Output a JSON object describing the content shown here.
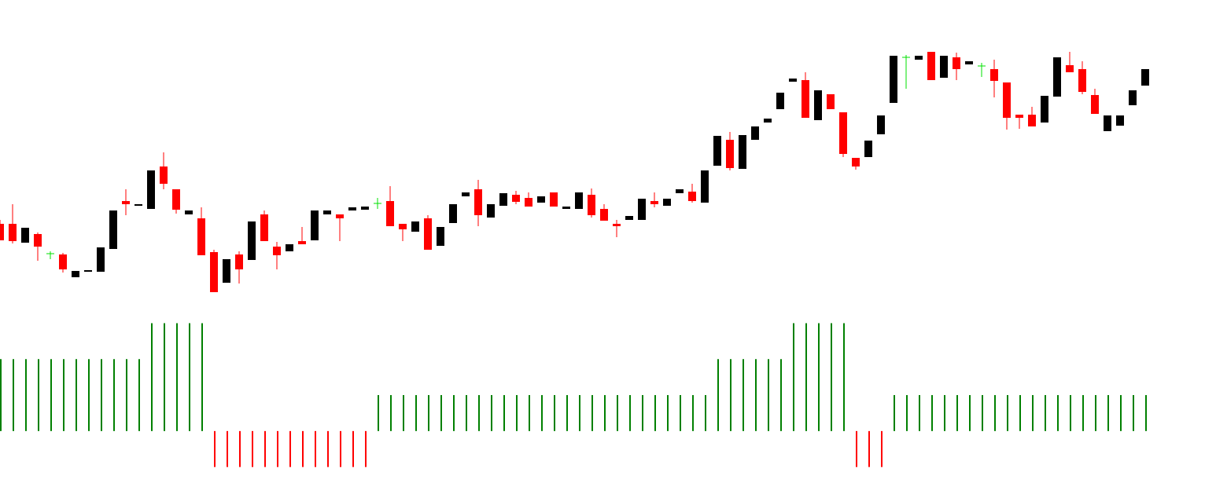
{
  "chart_data": [
    {
      "type": "candlestick",
      "ylim": [
        0,
        400
      ],
      "colors": {
        "up": "#000000",
        "down": "#ff0000",
        "doji": "#00e000"
      },
      "open": [
        115,
        115,
        91,
        102,
        77,
        76,
        47,
        54,
        54,
        83,
        144,
        138,
        134,
        188,
        159,
        127,
        122,
        79,
        40,
        76,
        69,
        127,
        86,
        80,
        93,
        94,
        127,
        127,
        132,
        133,
        141,
        144,
        115,
        105,
        122,
        87,
        116,
        150,
        159,
        123,
        138,
        152,
        148,
        142,
        155,
        134,
        134,
        152,
        134,
        115,
        120,
        120,
        144,
        138,
        154,
        156,
        142,
        189,
        222,
        185,
        222,
        244,
        261,
        296,
        298,
        247,
        280,
        257,
        199,
        200,
        229,
        269,
        327,
        324,
        334,
        301,
        327,
        318,
        316,
        312,
        295,
        254,
        254,
        244,
        277,
        317,
        312,
        279,
        233,
        240,
        266,
        291
      ],
      "high": [
        120,
        140,
        110,
        104,
        80,
        78,
        55,
        56,
        85,
        132,
        159,
        140,
        183,
        206,
        159,
        132,
        136,
        82,
        70,
        80,
        118,
        132,
        92,
        89,
        111,
        132,
        132,
        127,
        136,
        137,
        148,
        163,
        115,
        118,
        126,
        111,
        140,
        155,
        171,
        140,
        154,
        157,
        155,
        150,
        155,
        137,
        155,
        160,
        140,
        120,
        125,
        147,
        155,
        147,
        159,
        166,
        183,
        227,
        232,
        228,
        239,
        249,
        282,
        300,
        308,
        285,
        280,
        257,
        199,
        221,
        253,
        329,
        330,
        329,
        334,
        329,
        333,
        322,
        320,
        324,
        295,
        254,
        264,
        278,
        327,
        334,
        322,
        287,
        253,
        253,
        285,
        312
      ],
      "low": [
        94,
        90,
        91,
        68,
        70,
        53,
        47,
        54,
        54,
        83,
        126,
        138,
        134,
        159,
        128,
        127,
        75,
        28,
        40,
        39,
        69,
        93,
        57,
        80,
        89,
        94,
        127,
        93,
        132,
        133,
        134,
        112,
        93,
        105,
        82,
        87,
        116,
        150,
        112,
        123,
        138,
        140,
        137,
        142,
        137,
        134,
        134,
        123,
        119,
        98,
        120,
        120,
        136,
        138,
        154,
        142,
        142,
        189,
        183,
        185,
        222,
        244,
        261,
        296,
        250,
        247,
        261,
        200,
        184,
        200,
        229,
        269,
        287,
        324,
        298,
        301,
        298,
        318,
        302,
        276,
        235,
        236,
        239,
        244,
        277,
        308,
        280,
        255,
        233,
        240,
        266,
        291
      ],
      "close": [
        94,
        93,
        110,
        86,
        77,
        57,
        55,
        56,
        85,
        132,
        140,
        140,
        183,
        166,
        133,
        132,
        75,
        28,
        70,
        57,
        118,
        93,
        75,
        89,
        89,
        132,
        132,
        122,
        136,
        137,
        141,
        112,
        108,
        118,
        82,
        111,
        140,
        155,
        126,
        140,
        154,
        143,
        137,
        150,
        137,
        137,
        155,
        126,
        119,
        112,
        125,
        147,
        140,
        147,
        159,
        144,
        183,
        227,
        186,
        228,
        239,
        249,
        282,
        300,
        250,
        285,
        261,
        204,
        188,
        221,
        253,
        329,
        327,
        329,
        298,
        329,
        312,
        322,
        316,
        297,
        250,
        250,
        239,
        278,
        327,
        308,
        283,
        255,
        253,
        253,
        285,
        312
      ]
    },
    {
      "type": "bar",
      "ylim": [
        -1.75,
        3.25
      ],
      "colors": {
        "up": "#008000",
        "down": "#ff0000"
      },
      "values": [
        2,
        2,
        2,
        2,
        2,
        2,
        2,
        2,
        2,
        2,
        2,
        2,
        3,
        3,
        3,
        3,
        3,
        -1,
        -1,
        -1,
        -1,
        -1,
        -1,
        -1,
        -1,
        -1,
        -1,
        -1,
        -1,
        -1,
        1,
        1,
        1,
        1,
        1,
        1,
        1,
        1,
        1,
        1,
        1,
        1,
        1,
        1,
        1,
        1,
        1,
        1,
        1,
        1,
        1,
        1,
        1,
        1,
        1,
        1,
        1,
        2,
        2,
        2,
        2,
        2,
        2,
        3,
        3,
        3,
        3,
        3,
        -1,
        -1,
        -1,
        1,
        1,
        1,
        1,
        1,
        1,
        1,
        1,
        1,
        1,
        1,
        1,
        1,
        1,
        1,
        1,
        1,
        1,
        1,
        1,
        1
      ]
    }
  ]
}
